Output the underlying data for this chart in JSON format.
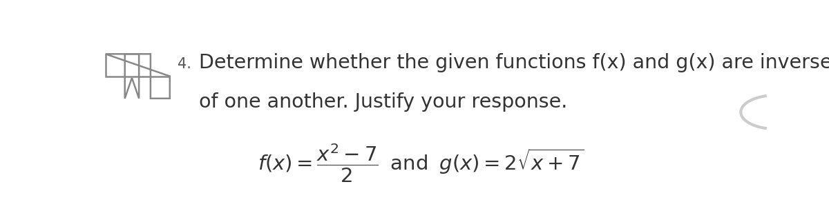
{
  "background_color": "#ffffff",
  "fig_width": 12.0,
  "fig_height": 3.22,
  "dpi": 100,
  "text_color": "#555555",
  "icon_color": "#888888",
  "number_text": "4.",
  "main_text_line1": "Determine whether the given functions f(x) and g(x) are inverses",
  "main_text_line2": "of one another. Justify your response.",
  "main_fontsize": 20.5,
  "number_fontsize": 15,
  "formula_fontsize": 21
}
